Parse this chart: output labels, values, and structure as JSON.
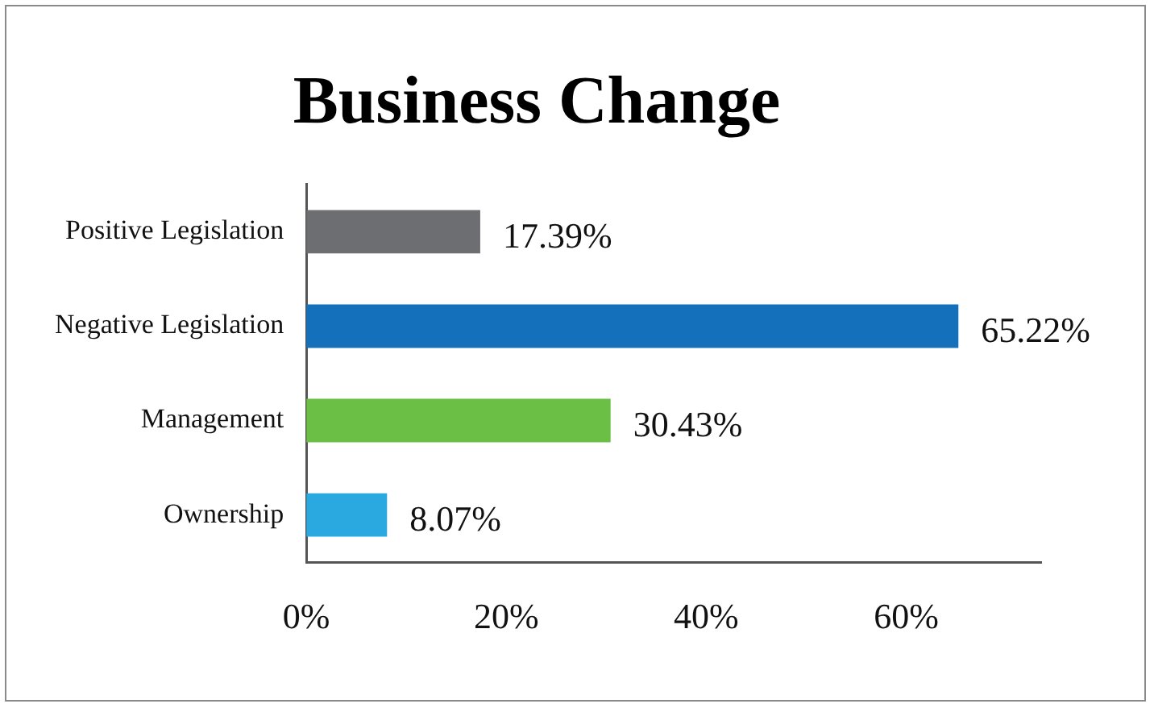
{
  "chart_data": {
    "type": "bar",
    "orientation": "horizontal",
    "title": "Business Change",
    "categories": [
      "Positive Legislation",
      "Negative Legislation",
      "Management",
      "Ownership"
    ],
    "values": [
      17.39,
      65.22,
      30.43,
      8.07
    ],
    "colors": [
      "#6d6e71",
      "#1470bb",
      "#6cbf45",
      "#29a9e0"
    ],
    "value_labels": [
      "17.39%",
      "65.22%",
      "30.43%",
      "8.07%"
    ],
    "xlim": [
      0,
      73.5
    ],
    "xticks": [
      {
        "value": 0,
        "label": "0%"
      },
      {
        "value": 20,
        "label": "20%"
      },
      {
        "value": 40,
        "label": "40%"
      },
      {
        "value": 60,
        "label": "60%"
      }
    ],
    "grid": false,
    "legend": false
  }
}
